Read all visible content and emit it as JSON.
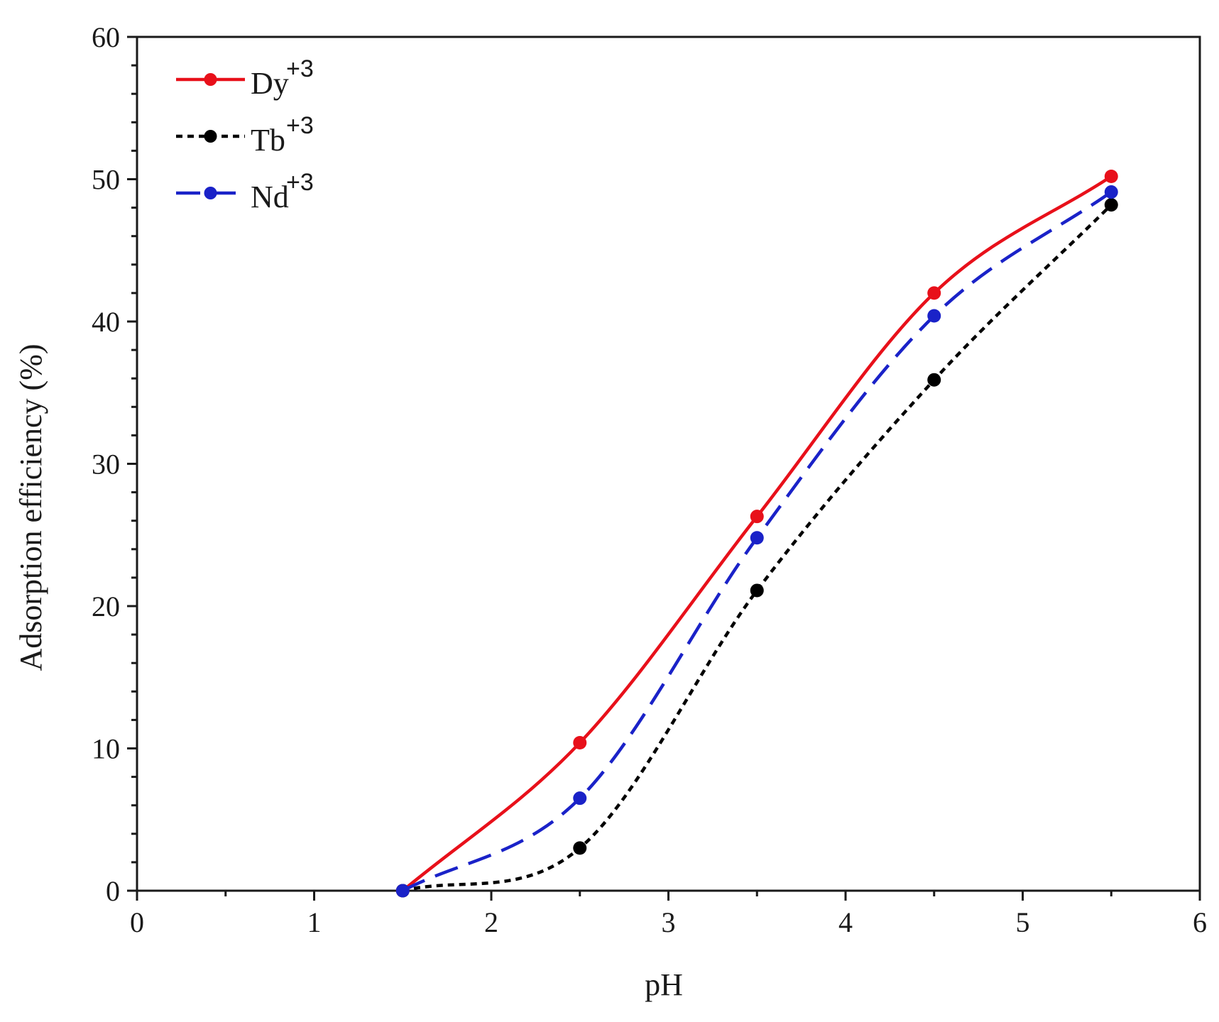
{
  "chart_data": {
    "type": "line",
    "xlabel": "pH",
    "ylabel": "Adsorption efficiency (%)",
    "xlim": [
      0,
      6
    ],
    "ylim": [
      0,
      60
    ],
    "x_ticks": [
      "0",
      "1",
      "2",
      "3",
      "4",
      "5",
      "6"
    ],
    "y_ticks": [
      "0",
      "10",
      "20",
      "30",
      "40",
      "50",
      "60"
    ],
    "grid": false,
    "legend_position": "top-left",
    "x": [
      1.5,
      2.5,
      3.5,
      4.5,
      5.5
    ],
    "series": [
      {
        "name": "Dy",
        "superscript": "+3",
        "values": [
          0,
          10.4,
          26.3,
          42.0,
          50.2
        ],
        "color": "#e8101a",
        "line_style": "solid"
      },
      {
        "name": "Tb",
        "superscript": "+3",
        "values": [
          0,
          3.0,
          21.1,
          35.9,
          48.2
        ],
        "color": "#000000",
        "line_style": "dotted"
      },
      {
        "name": "Nd",
        "superscript": "+3",
        "values": [
          0,
          6.5,
          24.8,
          40.4,
          49.1
        ],
        "color": "#1a22c8",
        "line_style": "dashed"
      }
    ]
  }
}
